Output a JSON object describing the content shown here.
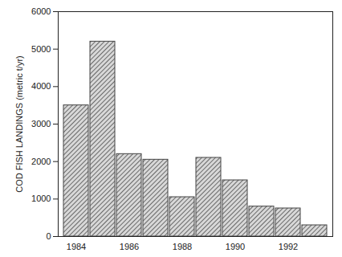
{
  "chart_data": {
    "type": "bar",
    "y_label": "COD FISH LANDINGS (metric t/yr)",
    "categories": [
      "1984",
      null,
      "1986",
      null,
      "1988",
      null,
      "1990",
      null,
      "1992",
      null
    ],
    "values": [
      3500,
      5200,
      2200,
      2050,
      1050,
      2100,
      1500,
      800,
      750,
      300
    ],
    "color": "#444444",
    "ylim": [
      0,
      6000
    ],
    "yticks": [
      0,
      1000,
      2000,
      3000,
      4000,
      5000,
      6000
    ],
    "grid": false
  }
}
